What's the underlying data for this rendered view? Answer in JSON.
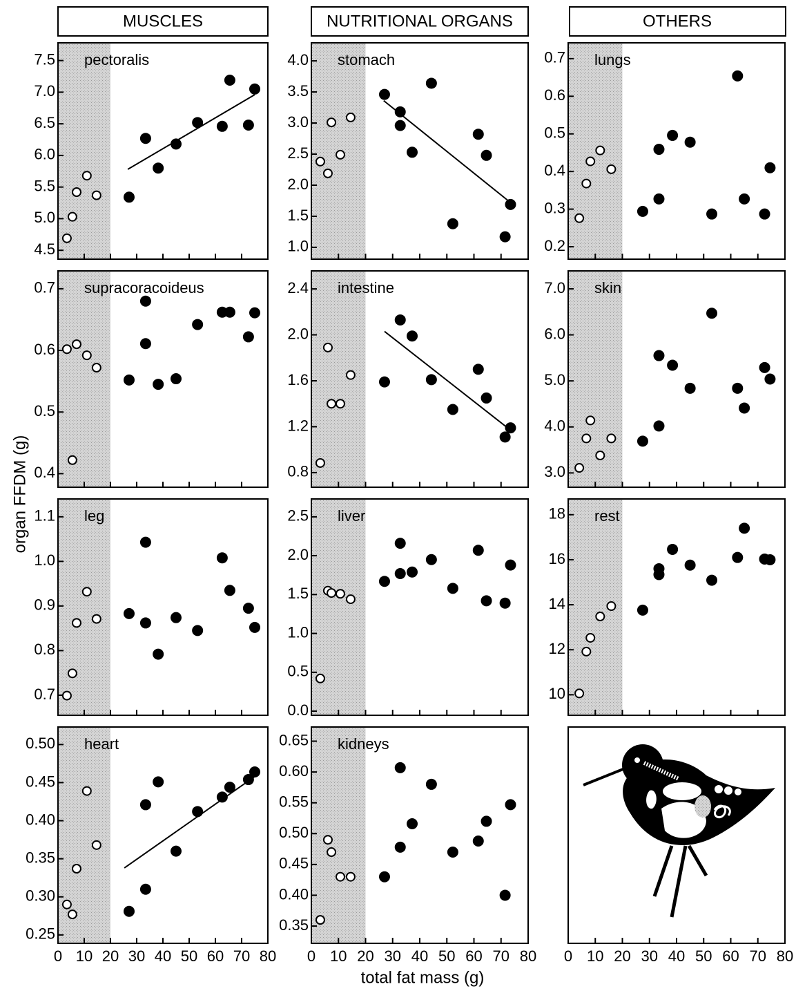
{
  "column_titles": [
    "MUSCLES",
    "NUTRITIONAL ORGANS",
    "OTHERS"
  ],
  "ylabel": "organ FFDM (g)",
  "xlabel": "total fat mass (g)",
  "chart_data": [
    {
      "type": "scatter",
      "label": "pectoralis",
      "xlim": [
        0,
        80
      ],
      "xticks": [
        0,
        10,
        20,
        30,
        40,
        50,
        60,
        70,
        80
      ],
      "shade": [
        0,
        20
      ],
      "ylim": [
        4.36,
        7.78
      ],
      "yticks": [
        {
          "value": 4.5,
          "label": "4.5"
        },
        {
          "value": 5,
          "label": "5.0"
        },
        5.5,
        {
          "value": 6,
          "label": "6.0"
        },
        6.5,
        {
          "value": 7,
          "label": "7.0"
        },
        7.5
      ],
      "series": [
        {
          "marker": "open",
          "x": [
            3.4,
            5.5,
            7.1,
            11,
            14.7
          ],
          "values": [
            4.69,
            5.03,
            5.42,
            5.68,
            5.37
          ]
        },
        {
          "marker": "filled",
          "x": [
            27.1,
            33.4,
            38.2,
            45,
            53.2,
            62.6,
            65.5,
            72.6,
            75
          ],
          "values": [
            5.34,
            6.27,
            5.8,
            6.18,
            6.52,
            6.46,
            7.19,
            6.48,
            7.05
          ]
        }
      ],
      "fit": {
        "x": [
          26.6,
          75
        ],
        "values": [
          5.78,
          6.96
        ]
      }
    },
    {
      "type": "scatter",
      "label": "supracoracoideus",
      "xlim": [
        0,
        80
      ],
      "xticks": [
        0,
        10,
        20,
        30,
        40,
        50,
        60,
        70,
        80
      ],
      "shade": [
        0,
        20
      ],
      "ylim": [
        0.378,
        0.729
      ],
      "yticks": [
        0.4,
        0.5,
        0.6,
        0.7
      ],
      "series": [
        {
          "marker": "open",
          "x": [
            3.4,
            5.5,
            7.1,
            11,
            14.7
          ],
          "values": [
            0.602,
            0.422,
            0.61,
            0.592,
            0.572
          ]
        },
        {
          "marker": "filled",
          "x": [
            27.1,
            33.4,
            33.4,
            38.2,
            45,
            53.2,
            62.6,
            65.5,
            72.6,
            75
          ],
          "values": [
            0.552,
            0.68,
            0.611,
            0.545,
            0.554,
            0.642,
            0.662,
            0.662,
            0.622,
            0.661
          ]
        }
      ]
    },
    {
      "type": "scatter",
      "label": "leg",
      "xlim": [
        0,
        80
      ],
      "xticks": [
        0,
        10,
        20,
        30,
        40,
        50,
        60,
        70,
        80
      ],
      "shade": [
        0,
        20
      ],
      "ylim": [
        0.655,
        1.14
      ],
      "yticks": [
        0.7,
        0.8,
        0.9,
        {
          "value": 1,
          "label": "1.0"
        },
        1.1
      ],
      "series": [
        {
          "marker": "open",
          "x": [
            3.4,
            5.5,
            7.1,
            11,
            14.7
          ],
          "values": [
            0.699,
            0.749,
            0.862,
            0.932,
            0.871
          ]
        },
        {
          "marker": "filled",
          "x": [
            27.1,
            33.4,
            33.4,
            38.2,
            45,
            53.2,
            62.6,
            65.5,
            72.6,
            75
          ],
          "values": [
            0.883,
            1.043,
            0.862,
            0.792,
            0.874,
            0.845,
            1.008,
            0.935,
            0.895,
            0.852
          ]
        }
      ]
    },
    {
      "type": "scatter",
      "label": "heart",
      "xlim": [
        0,
        80
      ],
      "xticks": [
        0,
        10,
        20,
        30,
        40,
        50,
        60,
        70,
        80
      ],
      "shade": [
        0,
        20
      ],
      "ylim": [
        0.239,
        0.523
      ],
      "yticks": [
        0.25,
        {
          "value": 0.3,
          "label": "0.30"
        },
        0.35,
        {
          "value": 0.4,
          "label": "0.40"
        },
        0.45,
        {
          "value": 0.5,
          "label": "0.50"
        }
      ],
      "series": [
        {
          "marker": "open",
          "x": [
            3.4,
            5.5,
            7.1,
            11,
            14.7
          ],
          "values": [
            0.29,
            0.277,
            0.337,
            0.439,
            0.368
          ]
        },
        {
          "marker": "filled",
          "x": [
            27.1,
            33.4,
            33.4,
            38.2,
            45,
            53.2,
            62.6,
            65.5,
            72.6,
            75
          ],
          "values": [
            0.281,
            0.31,
            0.421,
            0.451,
            0.36,
            0.412,
            0.431,
            0.444,
            0.454,
            0.464
          ]
        }
      ],
      "fit": {
        "x": [
          25.3,
          75
        ],
        "values": [
          0.338,
          0.458
        ]
      }
    },
    {
      "type": "scatter",
      "label": "stomach",
      "xlim": [
        0,
        80
      ],
      "xticks": [
        0,
        10,
        20,
        30,
        40,
        50,
        60,
        70,
        80
      ],
      "shade": [
        0,
        20
      ],
      "ylim": [
        0.81,
        4.29
      ],
      "yticks": [
        {
          "value": 1,
          "label": "1.0"
        },
        1.5,
        {
          "value": 2,
          "label": "2.0"
        },
        2.5,
        {
          "value": 3,
          "label": "3.0"
        },
        3.5,
        {
          "value": 4,
          "label": "4.0"
        }
      ],
      "series": [
        {
          "marker": "open",
          "x": [
            3.3,
            6.1,
            7.4,
            10.7,
            14.5
          ],
          "values": [
            2.38,
            2.19,
            3.01,
            2.49,
            3.09
          ]
        },
        {
          "marker": "filled",
          "x": [
            27,
            32.8,
            32.8,
            37.2,
            44.3,
            52.2,
            61.6,
            64.6,
            71.5,
            73.5
          ],
          "values": [
            3.46,
            3.18,
            2.96,
            2.53,
            3.64,
            1.38,
            2.82,
            2.48,
            1.17,
            1.69
          ]
        }
      ],
      "fit": {
        "x": [
          26.7,
          73.5
        ],
        "values": [
          3.36,
          1.72
        ]
      }
    },
    {
      "type": "scatter",
      "label": "intestine",
      "xlim": [
        0,
        80
      ],
      "xticks": [
        0,
        10,
        20,
        30,
        40,
        50,
        60,
        70,
        80
      ],
      "shade": [
        0,
        20
      ],
      "ylim": [
        0.673,
        2.557
      ],
      "yticks": [
        0.8,
        1.2,
        1.6,
        {
          "value": 2,
          "label": "2.0"
        },
        2.4
      ],
      "series": [
        {
          "marker": "open",
          "x": [
            3.3,
            6.1,
            7.4,
            10.7,
            14.5
          ],
          "values": [
            0.884,
            1.89,
            1.4,
            1.4,
            1.65
          ]
        },
        {
          "marker": "filled",
          "x": [
            27,
            32.8,
            37.2,
            44.3,
            52.2,
            61.6,
            64.6,
            71.5,
            73.5
          ],
          "values": [
            1.59,
            2.13,
            1.99,
            1.61,
            1.35,
            1.7,
            1.45,
            1.11,
            1.19
          ]
        }
      ],
      "fit": {
        "x": [
          27,
          73.5
        ],
        "values": [
          2.03,
          1.17
        ]
      }
    },
    {
      "type": "scatter",
      "label": "liver",
      "xlim": [
        0,
        80
      ],
      "xticks": [
        0,
        10,
        20,
        30,
        40,
        50,
        60,
        70,
        80
      ],
      "shade": [
        0,
        20
      ],
      "ylim": [
        -0.053,
        2.73
      ],
      "yticks": [
        {
          "value": 0,
          "label": "0.0"
        },
        0.5,
        {
          "value": 1,
          "label": "1.0"
        },
        1.5,
        {
          "value": 2,
          "label": "2.0"
        },
        2.5
      ],
      "series": [
        {
          "marker": "open",
          "x": [
            3.3,
            6.1,
            7.4,
            10.7,
            14.5
          ],
          "values": [
            0.42,
            1.55,
            1.52,
            1.51,
            1.44
          ]
        },
        {
          "marker": "filled",
          "x": [
            27,
            32.8,
            32.8,
            37.2,
            44.3,
            52.2,
            61.6,
            64.6,
            71.5,
            73.5
          ],
          "values": [
            1.67,
            2.16,
            1.77,
            1.79,
            1.95,
            1.58,
            2.07,
            1.42,
            1.39,
            1.88
          ]
        }
      ]
    },
    {
      "type": "scatter",
      "label": "kidneys",
      "xlim": [
        0,
        80
      ],
      "xticks": [
        0,
        10,
        20,
        30,
        40,
        50,
        60,
        70,
        80
      ],
      "shade": [
        0,
        20
      ],
      "ylim": [
        0.322,
        0.673
      ],
      "yticks": [
        0.35,
        {
          "value": 0.4,
          "label": "0.40"
        },
        0.45,
        {
          "value": 0.5,
          "label": "0.50"
        },
        0.55,
        {
          "value": 0.6,
          "label": "0.60"
        },
        0.65
      ],
      "series": [
        {
          "marker": "open",
          "x": [
            3.3,
            6.1,
            7.4,
            10.7,
            14.5
          ],
          "values": [
            0.36,
            0.49,
            0.47,
            0.43,
            0.43
          ]
        },
        {
          "marker": "filled",
          "x": [
            27,
            32.8,
            32.8,
            37.2,
            44.3,
            52.2,
            61.6,
            64.6,
            71.5,
            73.5
          ],
          "values": [
            0.43,
            0.607,
            0.478,
            0.516,
            0.58,
            0.47,
            0.488,
            0.52,
            0.4,
            0.547
          ]
        }
      ]
    },
    {
      "type": "scatter",
      "label": "lungs",
      "xlim": [
        0,
        80
      ],
      "xticks": [
        0,
        10,
        20,
        30,
        40,
        50,
        60,
        70,
        80
      ],
      "shade": [
        0,
        20
      ],
      "ylim": [
        0.167,
        0.742
      ],
      "yticks": [
        0.2,
        0.3,
        0.4,
        0.5,
        0.6,
        0.7
      ],
      "series": [
        {
          "marker": "open",
          "x": [
            4.1,
            6.7,
            8.2,
            11.8,
            15.9
          ],
          "values": [
            0.276,
            0.368,
            0.427,
            0.456,
            0.406
          ]
        },
        {
          "marker": "filled",
          "x": [
            27.5,
            33.5,
            33.5,
            38.5,
            45,
            53,
            62.5,
            65,
            72.5,
            74.5
          ],
          "values": [
            0.294,
            0.327,
            0.459,
            0.496,
            0.478,
            0.287,
            0.654,
            0.327,
            0.287,
            0.41
          ]
        }
      ]
    },
    {
      "type": "scatter",
      "label": "skin",
      "xlim": [
        0,
        80
      ],
      "xticks": [
        0,
        10,
        20,
        30,
        40,
        50,
        60,
        70,
        80
      ],
      "shade": [
        0,
        20
      ],
      "ylim": [
        2.69,
        7.39
      ],
      "yticks": [
        {
          "value": 3,
          "label": "3.0"
        },
        {
          "value": 4,
          "label": "4.0"
        },
        {
          "value": 5,
          "label": "5.0"
        },
        {
          "value": 6,
          "label": "6.0"
        },
        {
          "value": 7,
          "label": "7.0"
        }
      ],
      "series": [
        {
          "marker": "open",
          "x": [
            4.1,
            6.7,
            8.2,
            11.8,
            15.9
          ],
          "values": [
            3.11,
            3.75,
            4.14,
            3.38,
            3.75
          ]
        },
        {
          "marker": "filled",
          "x": [
            27.5,
            33.5,
            33.5,
            38.5,
            45,
            53,
            62.5,
            65,
            72.5,
            74.5
          ],
          "values": [
            3.69,
            4.02,
            5.55,
            5.34,
            4.84,
            6.47,
            4.84,
            4.41,
            5.29,
            5.04
          ]
        }
      ]
    },
    {
      "type": "scatter",
      "label": "rest",
      "xlim": [
        0,
        80
      ],
      "xticks": [
        0,
        10,
        20,
        30,
        40,
        50,
        60,
        70,
        80
      ],
      "shade": [
        0,
        20
      ],
      "ylim": [
        9.09,
        18.7
      ],
      "yticks": [
        10,
        12,
        14,
        16,
        18
      ],
      "series": [
        {
          "marker": "open",
          "x": [
            4.1,
            6.7,
            8.2,
            11.8,
            15.9
          ],
          "values": [
            10.06,
            11.92,
            12.53,
            13.48,
            13.94
          ]
        },
        {
          "marker": "filled",
          "x": [
            27.5,
            33.5,
            33.5,
            38.5,
            45,
            53,
            62.5,
            65,
            72.5,
            74.5
          ],
          "values": [
            13.76,
            15.34,
            15.6,
            16.46,
            15.76,
            15.09,
            16.1,
            17.4,
            16.03,
            16.0
          ]
        }
      ]
    },
    {
      "type": "illustration",
      "xlim": [
        0,
        80
      ],
      "xticks": [
        0,
        10,
        20,
        30,
        40,
        50,
        60,
        70,
        80
      ]
    }
  ]
}
